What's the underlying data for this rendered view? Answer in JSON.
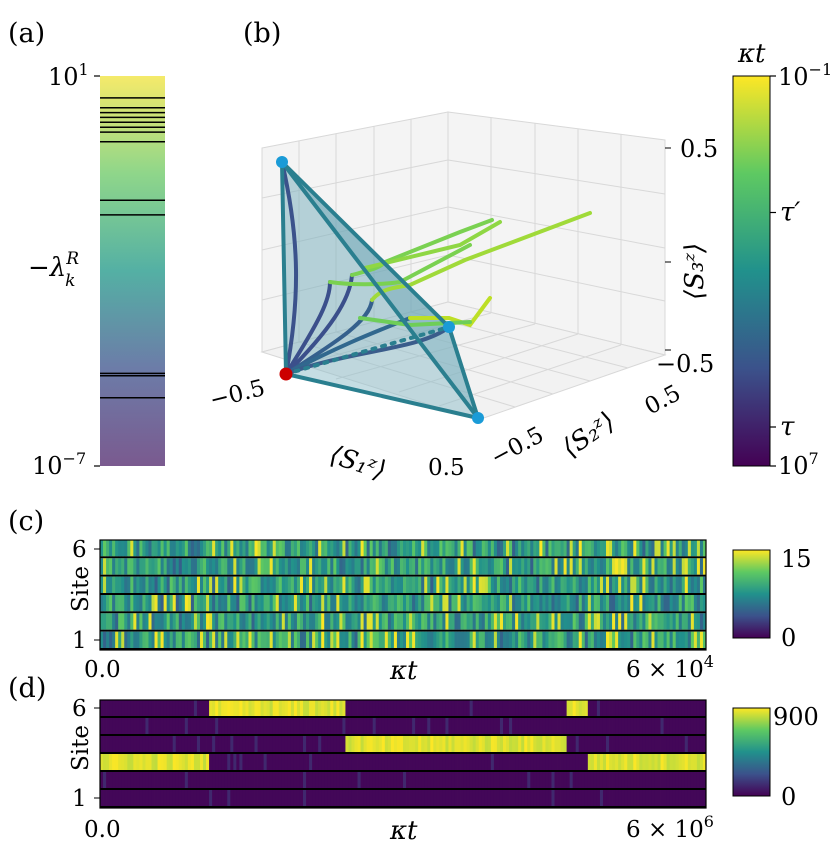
{
  "panel_labels": {
    "a": "(a)",
    "b": "(b)",
    "c": "(c)",
    "d": "(d)"
  },
  "colormap": [
    "#440154",
    "#3b528b",
    "#21918c",
    "#5ec962",
    "#fde725"
  ],
  "colors": {
    "simplex_edge": "#2a7f8f",
    "simplex_face": "#7fb3c0",
    "vertex": "#1a9bd7",
    "fixed_point": "#cc0000"
  },
  "chart_data": [
    {
      "id": "a",
      "type": "spectrum",
      "ylabel_base": "−λ",
      "ylabel_sub": "k",
      "ylabel_sup": "R",
      "yscale": "log",
      "ylim_exp": [
        -7,
        1
      ],
      "tick_top": {
        "base": "10",
        "exp": "1"
      },
      "tick_bottom": {
        "base": "10",
        "exp": "−7"
      },
      "eigenvalue_log10": [
        0.55,
        0.35,
        0.25,
        0.15,
        0.05,
        -0.05,
        -0.15,
        -0.35,
        -1.55,
        -1.85,
        -5.1,
        -5.15,
        -5.6
      ]
    },
    {
      "id": "b",
      "type": "3d-trajectories",
      "xlabel": "⟨S₁ᶻ⟩",
      "ylabel": "⟨S₂ᶻ⟩",
      "zlabel": "⟨S₃ᶻ⟩",
      "x_ticks": [
        "−0.5",
        "0.5"
      ],
      "y_ticks": [
        "−0.5",
        "0.5"
      ],
      "z_ticks": [
        "0.5",
        "−0.5"
      ],
      "colorbar": {
        "label": "κt",
        "top_base": "10",
        "top_exp": "−1",
        "bottom_base": "10",
        "bottom_exp": "7",
        "markers": [
          "τ′",
          "τ"
        ],
        "marker_levels": [
          0.35,
          0.9
        ]
      },
      "trajectory_count": 9
    },
    {
      "id": "c",
      "type": "heatmap",
      "ylabel": "Site",
      "xlabel": "κt",
      "sites": 6,
      "y_tick_top": "6",
      "y_tick_bottom": "1",
      "x_tick_start": "0.0",
      "x_tick_end_base": "6 × 10",
      "x_tick_end_exp": "4",
      "colorbar_range": [
        "0",
        "15"
      ],
      "pattern": "fluctuating"
    },
    {
      "id": "d",
      "type": "heatmap",
      "ylabel": "Site",
      "xlabel": "κt",
      "sites": 6,
      "y_tick_top": "6",
      "y_tick_bottom": "1",
      "x_tick_start": "0.0",
      "x_tick_end_base": "6 × 10",
      "x_tick_end_exp": "6",
      "colorbar_range": [
        "0",
        "900"
      ],
      "pattern": "switching",
      "occupied_segments": [
        {
          "site": 3,
          "start": 0.0,
          "end": 0.18
        },
        {
          "site": 6,
          "start": 0.18,
          "end": 0.405
        },
        {
          "site": 4,
          "start": 0.405,
          "end": 0.77
        },
        {
          "site": 6,
          "start": 0.77,
          "end": 0.805
        },
        {
          "site": 3,
          "start": 0.805,
          "end": 1.0
        }
      ]
    }
  ]
}
